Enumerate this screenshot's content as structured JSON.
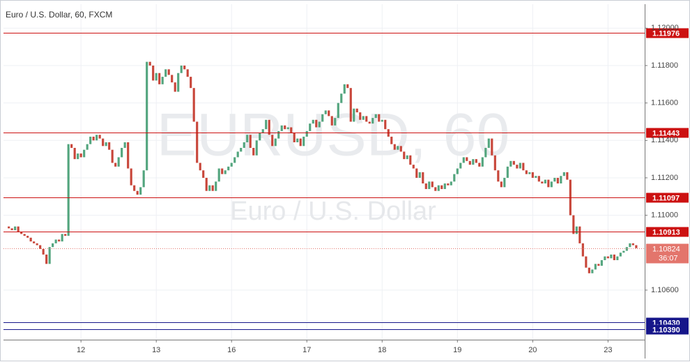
{
  "chart_data": {
    "type": "candlestick",
    "title": "Euro / U.S. Dollar, 60, FXCM",
    "watermark": "EURUSD, 60",
    "watermark_subtitle": "Euro / U.S. Dollar",
    "open": [
      1.1094,
      1.1093,
      1.1092,
      1.1094,
      1.1091,
      1.109,
      1.1089,
      1.1088,
      1.1086,
      1.1085,
      1.1084,
      1.1082,
      1.1079,
      1.1074,
      1.1083,
      1.1085,
      1.1087,
      1.1086,
      1.109,
      1.1089,
      1.1138,
      1.1136,
      1.113,
      1.1133,
      1.1131,
      1.1135,
      1.1138,
      1.1142,
      1.114,
      1.1143,
      1.1141,
      1.1137,
      1.1139,
      1.1135,
      1.1128,
      1.1126,
      1.1131,
      1.1136,
      1.1139,
      1.1125,
      1.1116,
      1.1113,
      1.1111,
      1.1115,
      1.1124,
      1.1182,
      1.118,
      1.1172,
      1.1176,
      1.117,
      1.1174,
      1.1178,
      1.1175,
      1.1171,
      1.1166,
      1.1176,
      1.118,
      1.1178,
      1.1174,
      1.1168,
      1.115,
      1.1128,
      1.1124,
      1.112,
      1.1113,
      1.1116,
      1.1113,
      1.1118,
      1.1125,
      1.1122,
      1.1124,
      1.1126,
      1.1128,
      1.1131,
      1.1134,
      1.1136,
      1.1139,
      1.1143,
      1.1136,
      1.1132,
      1.114,
      1.1144,
      1.1146,
      1.1151,
      1.1143,
      1.1137,
      1.1141,
      1.1145,
      1.1148,
      1.1146,
      1.1147,
      1.1144,
      1.1139,
      1.1141,
      1.1137,
      1.1142,
      1.1145,
      1.1149,
      1.1151,
      1.1147,
      1.115,
      1.1154,
      1.1156,
      1.1153,
      1.1148,
      1.1152,
      1.116,
      1.1165,
      1.117,
      1.1168,
      1.115,
      1.1157,
      1.1155,
      1.1151,
      1.1153,
      1.115,
      1.1149,
      1.1152,
      1.1154,
      1.115,
      1.1151,
      1.1146,
      1.1142,
      1.1138,
      1.1135,
      1.1137,
      1.1134,
      1.113,
      1.1132,
      1.1127,
      1.1125,
      1.112,
      1.1123,
      1.1117,
      1.1114,
      1.1118,
      1.1115,
      1.1113,
      1.1116,
      1.1114,
      1.1117,
      1.1116,
      1.1118,
      1.1122,
      1.1125,
      1.1128,
      1.1131,
      1.1129,
      1.1127,
      1.113,
      1.1128,
      1.1126,
      1.1131,
      1.1136,
      1.1141,
      1.1132,
      1.1124,
      1.1118,
      1.1115,
      1.112,
      1.1126,
      1.1129,
      1.1127,
      1.1125,
      1.1128,
      1.1124,
      1.1122,
      1.1123,
      1.112,
      1.1121,
      1.1118,
      1.1117,
      1.1119,
      1.1115,
      1.1118,
      1.112,
      1.1117,
      1.1121,
      1.1123,
      1.1119,
      1.11,
      1.109,
      1.1094,
      1.1085,
      1.1078,
      1.1072,
      1.1069,
      1.1071,
      1.1074,
      1.1073,
      1.1076,
      1.1078,
      1.1077,
      1.1079,
      1.1076,
      1.1078,
      1.108,
      1.1081,
      1.1083,
      1.1085,
      1.1084
    ],
    "close": [
      1.1093,
      1.1092,
      1.1094,
      1.1091,
      1.109,
      1.1089,
      1.1088,
      1.1086,
      1.1085,
      1.1084,
      1.1082,
      1.1079,
      1.1074,
      1.1083,
      1.1085,
      1.1087,
      1.1086,
      1.109,
      1.1089,
      1.1138,
      1.1136,
      1.113,
      1.1133,
      1.1131,
      1.1135,
      1.1138,
      1.1142,
      1.114,
      1.1143,
      1.1141,
      1.1137,
      1.1139,
      1.1135,
      1.1128,
      1.1126,
      1.1131,
      1.1136,
      1.1139,
      1.1125,
      1.1116,
      1.1113,
      1.1111,
      1.1115,
      1.1124,
      1.1182,
      1.118,
      1.1172,
      1.1176,
      1.117,
      1.1174,
      1.1178,
      1.1175,
      1.1171,
      1.1166,
      1.1176,
      1.118,
      1.1178,
      1.1174,
      1.1168,
      1.115,
      1.1128,
      1.1124,
      1.112,
      1.1113,
      1.1116,
      1.1113,
      1.1118,
      1.1125,
      1.1122,
      1.1124,
      1.1126,
      1.1128,
      1.1131,
      1.1134,
      1.1136,
      1.1139,
      1.1143,
      1.1136,
      1.1132,
      1.114,
      1.1144,
      1.1146,
      1.1151,
      1.1143,
      1.1137,
      1.1141,
      1.1145,
      1.1148,
      1.1146,
      1.1147,
      1.1144,
      1.1139,
      1.1141,
      1.1137,
      1.1142,
      1.1145,
      1.1149,
      1.1151,
      1.1147,
      1.115,
      1.1154,
      1.1156,
      1.1153,
      1.1148,
      1.1152,
      1.116,
      1.1165,
      1.117,
      1.1168,
      1.115,
      1.1157,
      1.1155,
      1.1151,
      1.1153,
      1.115,
      1.1149,
      1.1152,
      1.1154,
      1.115,
      1.1151,
      1.1146,
      1.1142,
      1.1138,
      1.1135,
      1.1137,
      1.1134,
      1.113,
      1.1132,
      1.1127,
      1.1125,
      1.112,
      1.1123,
      1.1117,
      1.1114,
      1.1118,
      1.1115,
      1.1113,
      1.1116,
      1.1114,
      1.1117,
      1.1116,
      1.1118,
      1.1122,
      1.1125,
      1.1128,
      1.1131,
      1.1129,
      1.1127,
      1.113,
      1.1128,
      1.1126,
      1.1131,
      1.1136,
      1.1141,
      1.1132,
      1.1124,
      1.1118,
      1.1115,
      1.112,
      1.1126,
      1.1129,
      1.1127,
      1.1125,
      1.1128,
      1.1124,
      1.1122,
      1.1123,
      1.112,
      1.1121,
      1.1118,
      1.1117,
      1.1119,
      1.1115,
      1.1118,
      1.112,
      1.1117,
      1.1121,
      1.1123,
      1.1119,
      1.11,
      1.109,
      1.1094,
      1.1085,
      1.1078,
      1.1072,
      1.1069,
      1.1071,
      1.1074,
      1.1073,
      1.1076,
      1.1078,
      1.1077,
      1.1079,
      1.1076,
      1.1078,
      1.108,
      1.1081,
      1.1083,
      1.1085,
      1.1084,
      1.10824
    ],
    "up_color": "#53a57e",
    "down_color": "#c8463a",
    "xlim": [
      -1.7,
      202.7
    ],
    "xticks": [
      {
        "value": 23,
        "label": "12"
      },
      {
        "value": 47,
        "label": "13"
      },
      {
        "value": 71,
        "label": "16"
      },
      {
        "value": 95,
        "label": "17"
      },
      {
        "value": 119,
        "label": "18"
      },
      {
        "value": 143,
        "label": "19"
      },
      {
        "value": 167,
        "label": "20"
      },
      {
        "value": 191,
        "label": "23"
      }
    ],
    "ylim": [
      1.10335,
      1.12128
    ],
    "yticks": [
      {
        "value": 1.106,
        "label": "1.10600"
      },
      {
        "value": 1.11,
        "label": "1.11000"
      },
      {
        "value": 1.112,
        "label": "1.11200"
      },
      {
        "value": 1.114,
        "label": "1.11400"
      },
      {
        "value": 1.116,
        "label": "1.11600"
      },
      {
        "value": 1.118,
        "label": "1.11800"
      },
      {
        "value": 1.12,
        "label": "1.12000"
      }
    ],
    "grid": true,
    "levels": [
      {
        "value": 1.11976,
        "color": "#cc1111"
      },
      {
        "value": 1.11443,
        "color": "#cc1111"
      },
      {
        "value": 1.11097,
        "color": "#cc1111"
      },
      {
        "value": 1.10913,
        "color": "#cc1111"
      },
      {
        "value": 1.1043,
        "label": "1.10430",
        "color": "#16168a"
      },
      {
        "value": 1.1039,
        "label": "1.10390",
        "color": "#16168a"
      }
    ],
    "current_price": {
      "value": 1.10824,
      "countdown": "36:07",
      "color": "#e3756c"
    }
  }
}
